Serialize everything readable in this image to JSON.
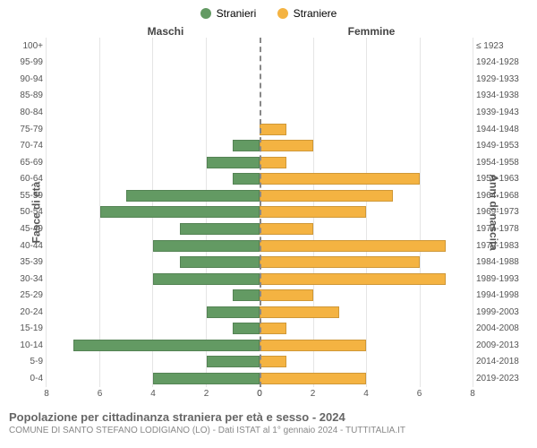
{
  "legend": {
    "male": {
      "label": "Stranieri",
      "color": "#639a63"
    },
    "female": {
      "label": "Straniere",
      "color": "#f4b342"
    }
  },
  "headers": {
    "male": "Maschi",
    "female": "Femmine"
  },
  "axis": {
    "left_title": "Fasce di età",
    "right_title": "Anni di nascita",
    "xmax": 8,
    "ticks": [
      0,
      2,
      4,
      6,
      8
    ],
    "grid_color": "#e5e5e5",
    "centerline_color": "#888888"
  },
  "age_labels": [
    "100+",
    "95-99",
    "90-94",
    "85-89",
    "80-84",
    "75-79",
    "70-74",
    "65-69",
    "60-64",
    "55-59",
    "50-54",
    "45-49",
    "40-44",
    "35-39",
    "30-34",
    "25-29",
    "20-24",
    "15-19",
    "10-14",
    "5-9",
    "0-4"
  ],
  "year_labels": [
    "≤ 1923",
    "1924-1928",
    "1929-1933",
    "1934-1938",
    "1939-1943",
    "1944-1948",
    "1949-1953",
    "1954-1958",
    "1959-1963",
    "1964-1968",
    "1969-1973",
    "1974-1978",
    "1979-1983",
    "1984-1988",
    "1989-1993",
    "1994-1998",
    "1999-2003",
    "2004-2008",
    "2009-2013",
    "2014-2018",
    "2019-2023"
  ],
  "male_values": [
    0,
    0,
    0,
    0,
    0,
    0,
    1,
    2,
    1,
    5,
    6,
    3,
    4,
    3,
    4,
    1,
    2,
    1,
    7,
    2,
    4
  ],
  "female_values": [
    0,
    0,
    0,
    0,
    0,
    1,
    2,
    1,
    6,
    5,
    4,
    2,
    7,
    6,
    7,
    2,
    3,
    1,
    4,
    1,
    4
  ],
  "colors": {
    "male_bar": "#639a63",
    "female_bar": "#f4b342",
    "background": "#ffffff",
    "text": "#555555"
  },
  "fontsize": {
    "label": 10,
    "axis_title": 12,
    "header": 12,
    "legend": 12,
    "footer_title": 13,
    "footer_sub": 10
  },
  "footer": {
    "title": "Popolazione per cittadinanza straniera per età e sesso - 2024",
    "subtitle": "COMUNE DI SANTO STEFANO LODIGIANO (LO) - Dati ISTAT al 1° gennaio 2024 - TUTTITALIA.IT"
  }
}
